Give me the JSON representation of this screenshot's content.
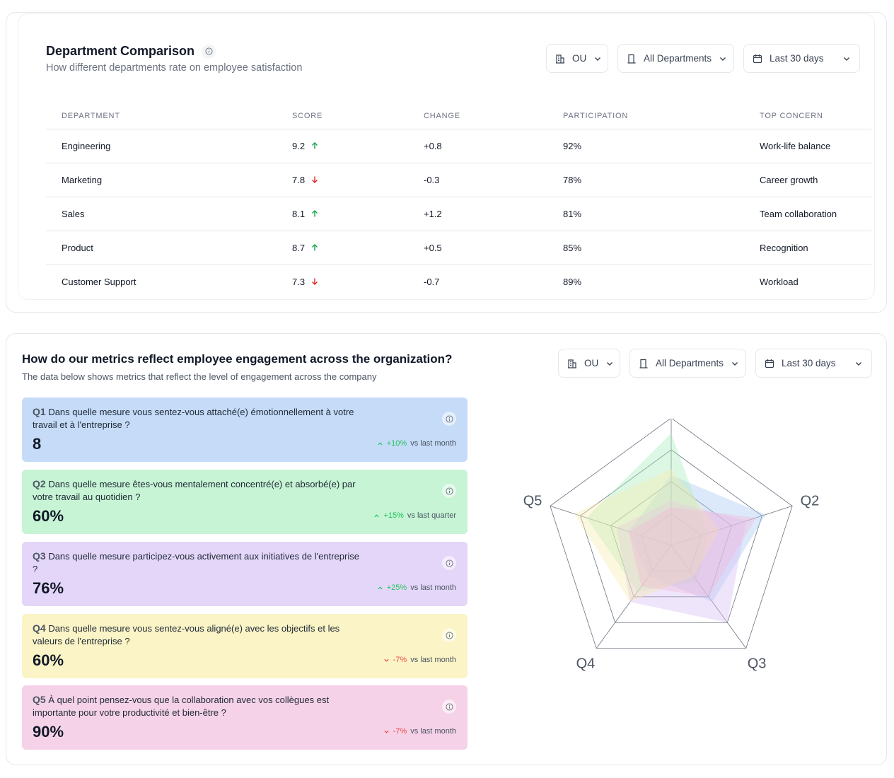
{
  "comparison": {
    "title": "Department Comparison",
    "subtitle": "How different departments rate on employee satisfaction",
    "filters": {
      "ou": "OU",
      "departments": "All Departments",
      "period": "Last 30 days"
    },
    "columns": [
      "DEPARTMENT",
      "SCORE",
      "CHANGE",
      "PARTICIPATION",
      "TOP CONCERN"
    ],
    "rows": [
      {
        "department": "Engineering",
        "score": "9.2",
        "trend": "up",
        "change": "+0.8",
        "participation": "92%",
        "concern": "Work-life balance"
      },
      {
        "department": "Marketing",
        "score": "7.8",
        "trend": "down",
        "change": "-0.3",
        "participation": "78%",
        "concern": "Career growth"
      },
      {
        "department": "Sales",
        "score": "8.1",
        "trend": "up",
        "change": "+1.2",
        "participation": "81%",
        "concern": "Team collaboration"
      },
      {
        "department": "Product",
        "score": "8.7",
        "trend": "up",
        "change": "+0.5",
        "participation": "85%",
        "concern": "Recognition"
      },
      {
        "department": "Customer Support",
        "score": "7.3",
        "trend": "down",
        "change": "-0.7",
        "participation": "89%",
        "concern": "Workload"
      }
    ]
  },
  "engagement": {
    "title": "How do our metrics reflect employee engagement across the organization?",
    "subtitle": "The data below shows metrics that reflect the level of engagement across the company",
    "filters": {
      "ou": "OU",
      "departments": "All Departments",
      "period": "Last 30 days"
    },
    "questions": [
      {
        "id": "Q1",
        "text": "Dans quelle mesure vous sentez-vous attaché(e) émotionnellement à votre travail et à l'entreprise ?",
        "value": "8",
        "trend": "up",
        "delta": "+10%",
        "period": "vs last month",
        "color": "#c5dbf7"
      },
      {
        "id": "Q2",
        "text": "Dans quelle mesure êtes-vous mentalement concentré(e) et absorbé(e) par votre travail au quotidien ?",
        "value": "60%",
        "trend": "up",
        "delta": "+15%",
        "period": "vs last quarter",
        "color": "#c6f4d4"
      },
      {
        "id": "Q3",
        "text": "Dans quelle mesure participez-vous activement aux initiatives de l'entreprise ?",
        "value": "76%",
        "trend": "up",
        "delta": "+25%",
        "period": "vs last month",
        "color": "#e4d6f9"
      },
      {
        "id": "Q4",
        "text": "Dans quelle mesure vous sentez-vous aligné(e) avec les objectifs et les valeurs de l'entreprise ?",
        "value": "60%",
        "trend": "down",
        "delta": "-7%",
        "period": "vs last month",
        "color": "#fbf4c6"
      },
      {
        "id": "Q5",
        "text": "À quel point pensez-vous que la collaboration avec vos collègues est importante pour votre productivité et bien-être ?",
        "value": "90%",
        "trend": "down",
        "delta": "-7%",
        "period": "vs last month",
        "color": "#f5d2e7"
      }
    ]
  },
  "chart_data": {
    "type": "radar",
    "axes": [
      "Q1",
      "Q2",
      "Q3",
      "Q4",
      "Q5"
    ],
    "levels": 4,
    "series": [
      {
        "color": "#a7c8f2",
        "values": [
          0.55,
          0.78,
          0.55,
          0.3,
          0.35
        ]
      },
      {
        "color": "#a8ecbc",
        "values": [
          0.88,
          0.3,
          0.35,
          0.45,
          0.7
        ]
      },
      {
        "color": "#d7bdf6",
        "values": [
          0.35,
          0.62,
          0.75,
          0.55,
          0.45
        ]
      },
      {
        "color": "#f8ecae",
        "values": [
          0.6,
          0.4,
          0.3,
          0.55,
          0.8
        ]
      },
      {
        "color": "#f2b8d8",
        "values": [
          0.3,
          0.7,
          0.5,
          0.4,
          0.35
        ]
      }
    ]
  }
}
